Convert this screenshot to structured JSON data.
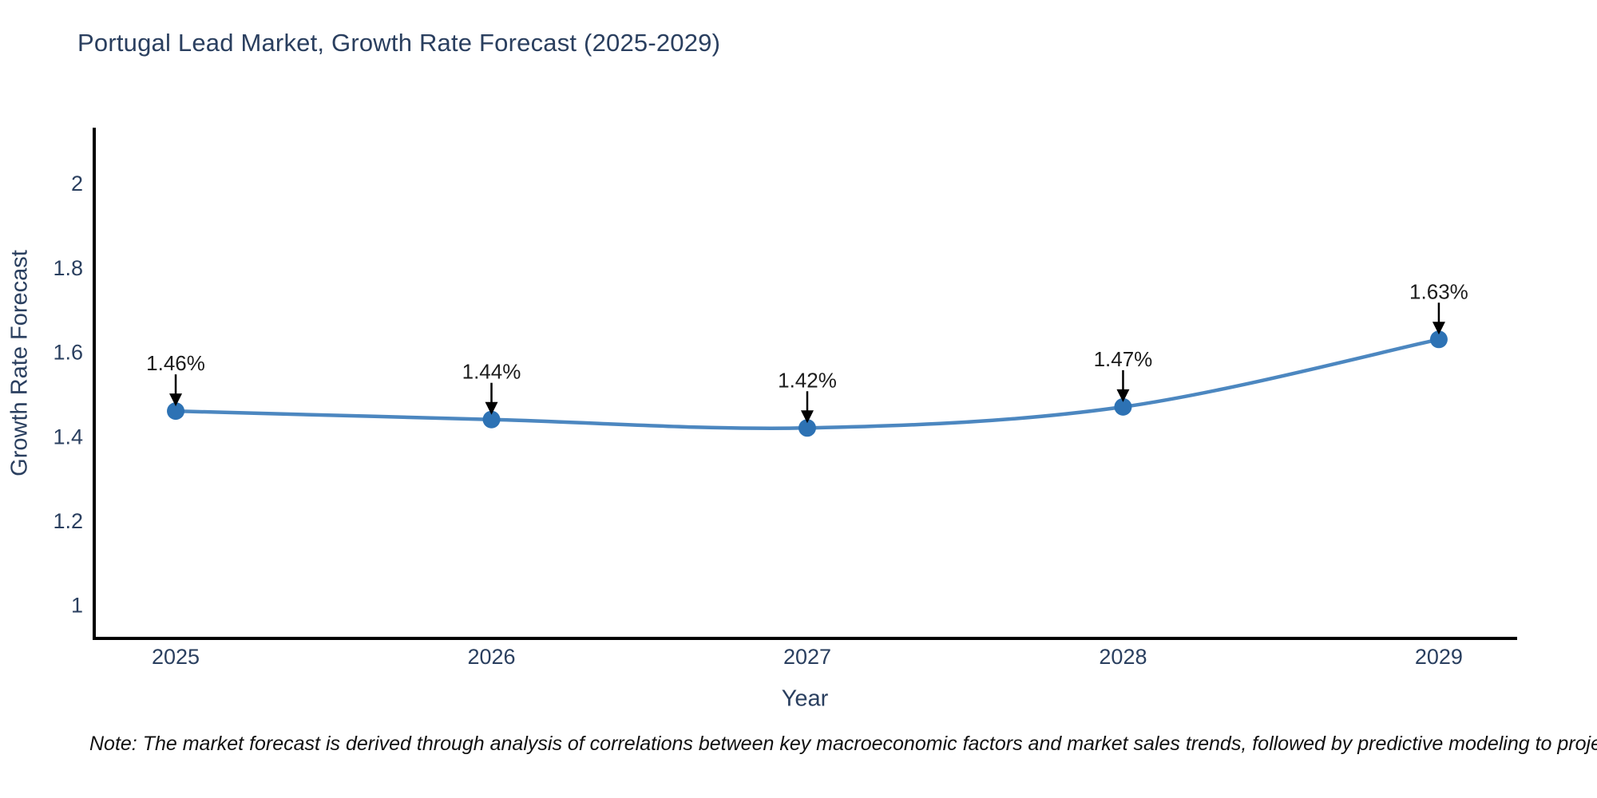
{
  "title": "Portugal Lead Market, Growth Rate Forecast (2025-2029)",
  "note": "Note: The market forecast is derived through analysis of correlations between key macroeconomic factors and market sales trends, followed by predictive modeling to project future sales",
  "chart_data": {
    "type": "line",
    "title": "Portugal Lead Market, Growth Rate Forecast (2025-2029)",
    "xlabel": "Year",
    "ylabel": "Growth Rate Forecast",
    "x": [
      2025,
      2026,
      2027,
      2028,
      2029
    ],
    "values": [
      1.46,
      1.44,
      1.42,
      1.47,
      1.63
    ],
    "point_labels": [
      "1.46%",
      "1.44%",
      "1.42%",
      "1.47%",
      "1.63%"
    ],
    "yticks": [
      1,
      1.2,
      1.4,
      1.6,
      1.8,
      2
    ],
    "ytick_labels": [
      "1",
      "1.2",
      "1.4",
      "1.6",
      "1.8",
      "2"
    ],
    "xticks": [
      2025,
      2026,
      2027,
      2028,
      2029
    ],
    "xtick_labels": [
      "2025",
      "2026",
      "2027",
      "2028",
      "2029"
    ],
    "xlim": [
      2024.742,
      2029.248
    ],
    "ylim": [
      0.921,
      2.132
    ],
    "grid": false,
    "legend": null,
    "line_shape": "spline",
    "colors": {
      "line": "#4c87c0",
      "marker": "#2d72b4",
      "axis": "#000000",
      "axis_text": "#2a3f5f",
      "annotation_text": "#1c1c1c",
      "arrow": "#000000"
    }
  }
}
